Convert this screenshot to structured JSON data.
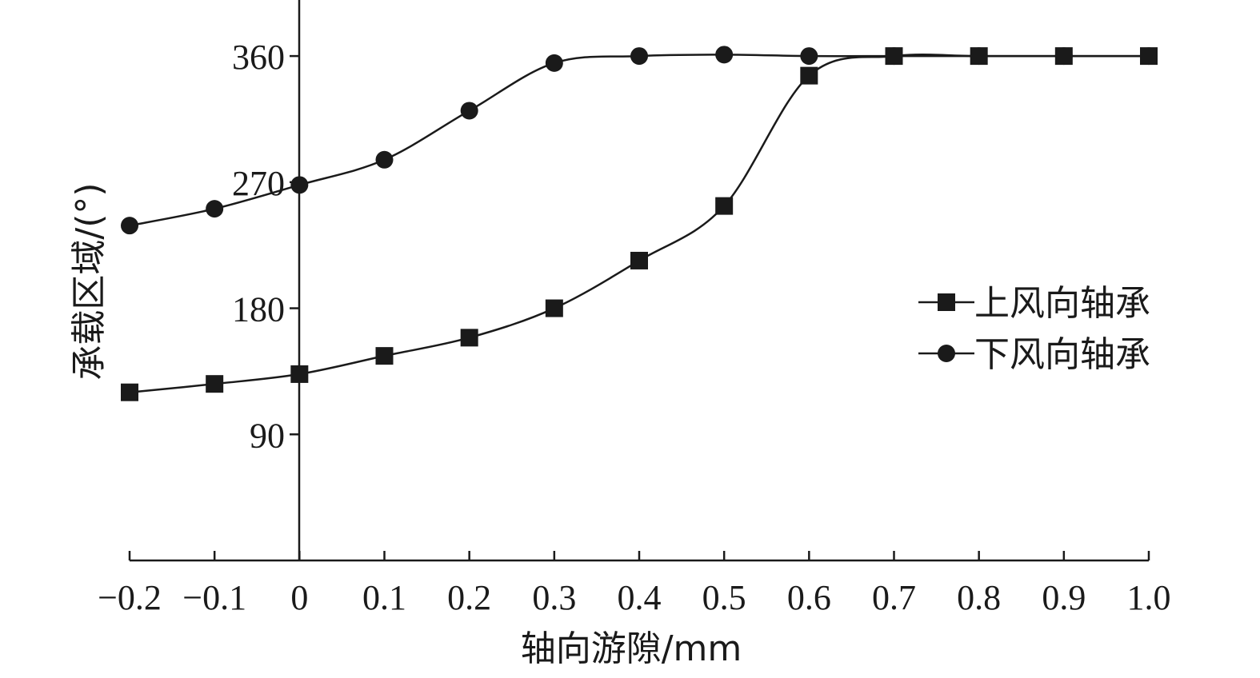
{
  "chart_data": {
    "type": "line",
    "xlabel": "轴向游隙/mm",
    "ylabel": "承载区域/(°)",
    "x": [
      -0.2,
      -0.1,
      0,
      0.1,
      0.2,
      0.3,
      0.4,
      0.5,
      0.6,
      0.7,
      0.8,
      0.9,
      1.0
    ],
    "x_tick_labels": [
      "−0.2",
      "−0.1",
      "0",
      "0.1",
      "0.2",
      "0.3",
      "0.4",
      "0.5",
      "0.6",
      "0.7",
      "0.8",
      "0.9",
      "1.0"
    ],
    "y_ticks": [
      90,
      180,
      270,
      360
    ],
    "y_tick_labels": [
      "90",
      "180",
      "270",
      "360"
    ],
    "xlim": [
      -0.2,
      1.0
    ],
    "ylim": [
      0,
      400
    ],
    "grid": false,
    "legend_position": "right",
    "series": [
      {
        "name": "上风向轴承",
        "marker": "square",
        "values": [
          120,
          126,
          133,
          146,
          159,
          180,
          214,
          253,
          346,
          360,
          360,
          360,
          360
        ]
      },
      {
        "name": "下风向轴承",
        "marker": "circle",
        "values": [
          239,
          251,
          268,
          286,
          321,
          355,
          360,
          361,
          360,
          360,
          360,
          360,
          360
        ]
      }
    ],
    "colors": {
      "line": "#1a1a1a",
      "background": "#ffffff"
    }
  }
}
